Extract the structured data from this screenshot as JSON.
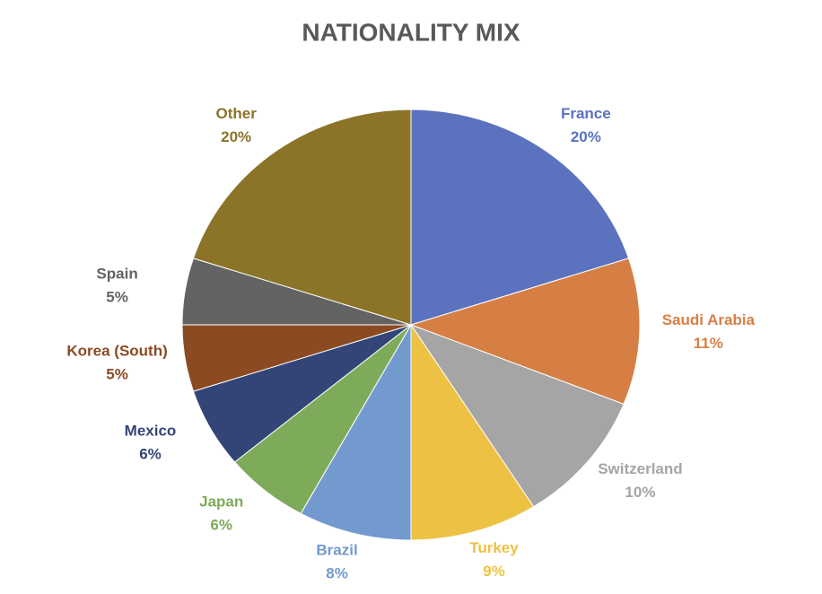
{
  "chart_data": {
    "type": "pie",
    "title": "NATIONALITY MIX",
    "categories": [
      "France",
      "Saudi Arabia",
      "Switzerland",
      "Turkey",
      "Brazil",
      "Japan",
      "Mexico",
      "Korea (South)",
      "Spain",
      "Other"
    ],
    "values": [
      20,
      11,
      10,
      9,
      8,
      6,
      6,
      5,
      5,
      20
    ],
    "value_labels": [
      "20%",
      "11%",
      "10%",
      "9%",
      "8%",
      "6%",
      "6%",
      "5%",
      "5%",
      "20%"
    ],
    "colors": [
      "#5b72be",
      "#d67f45",
      "#a5a5a5",
      "#edc244",
      "#739acf",
      "#7dab5a",
      "#334577",
      "#8b4a22",
      "#636363",
      "#8b7428"
    ]
  }
}
